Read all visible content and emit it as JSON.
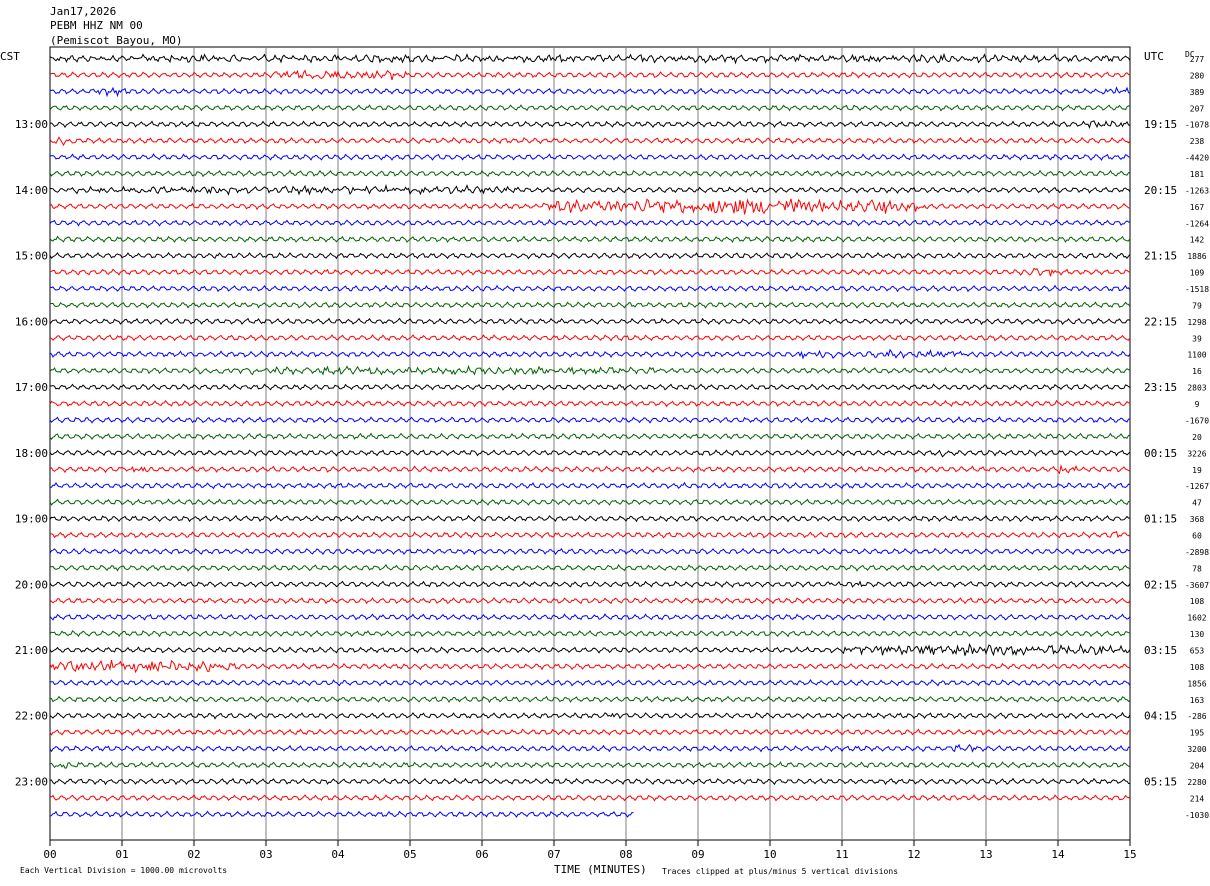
{
  "header": {
    "date": "Jan17,2026",
    "station": "PEBM HHZ NM 00",
    "location": "(Pemiscot Bayou, MO)"
  },
  "left_tz": "CST",
  "right_tz": "UTC",
  "dc_label": "DC",
  "footer": {
    "scale_note": "Each Vertical Division = 1000.00 microvolts",
    "xaxis_title": "TIME (MINUTES)",
    "clip_note": "Traces clipped at plus/minus 5 vertical divisions"
  },
  "colors": {
    "trace_cycle": [
      "#000000",
      "#ff0000",
      "#0000ff",
      "#006400"
    ],
    "grid": "#808080",
    "axes": "#000000"
  },
  "chart_data": {
    "type": "helicorder",
    "x": {
      "label": "TIME (MINUTES)",
      "range": [
        0,
        15
      ],
      "ticks": [
        "00",
        "01",
        "02",
        "03",
        "04",
        "05",
        "06",
        "07",
        "08",
        "09",
        "10",
        "11",
        "12",
        "13",
        "14",
        "15"
      ]
    },
    "rows_per_hour": 4,
    "row_minutes": 15,
    "left_hour_labels": [
      "13:00",
      "14:00",
      "15:00",
      "16:00",
      "17:00",
      "18:00",
      "19:00",
      "20:00",
      "21:00",
      "22:00",
      "23:00"
    ],
    "right_hour_labels": [
      "19:15",
      "20:15",
      "21:15",
      "22:15",
      "23:15",
      "00:15",
      "01:15",
      "02:15",
      "03:15",
      "04:15",
      "05:15"
    ],
    "dc_offsets": [
      "277",
      "280",
      "389",
      "207",
      "-1078",
      "238",
      "-4420",
      "181",
      "-1263",
      "167",
      "-1264",
      "142",
      "1886",
      "109",
      "-1518",
      "79",
      "1298",
      "39",
      "1100",
      "16",
      "2803",
      "9",
      "-1670",
      "20",
      "3226",
      "19",
      "-1267",
      "47",
      "368",
      "60",
      "-2898",
      "78",
      "-3607",
      "108",
      "1602",
      "130",
      "653",
      "108",
      "1856",
      "163",
      "-286",
      "195",
      "3200",
      "204",
      "2280",
      "214",
      "-1030"
    ],
    "last_trace_end_minute": 8.1,
    "events": [
      {
        "row": 0,
        "from": 0.0,
        "to": 15.0,
        "amp": 1.4
      },
      {
        "row": 1,
        "from": 3.1,
        "to": 5.0,
        "amp": 2.0
      },
      {
        "row": 2,
        "from": 0.6,
        "to": 1.1,
        "amp": 1.8
      },
      {
        "row": 2,
        "from": 14.6,
        "to": 15.0,
        "amp": 2.2
      },
      {
        "row": 4,
        "from": 14.4,
        "to": 15.0,
        "amp": 2.0
      },
      {
        "row": 5,
        "from": 0.0,
        "to": 0.35,
        "amp": 2.0
      },
      {
        "row": 8,
        "from": 0.0,
        "to": 6.5,
        "amp": 1.3
      },
      {
        "row": 9,
        "from": 6.8,
        "to": 12.2,
        "amp": 3.8
      },
      {
        "row": 9,
        "from": 9.0,
        "to": 10.6,
        "amp": 5.0
      },
      {
        "row": 13,
        "from": 13.5,
        "to": 14.0,
        "amp": 1.8
      },
      {
        "row": 18,
        "from": 10.4,
        "to": 10.9,
        "amp": 2.2
      },
      {
        "row": 18,
        "from": 11.3,
        "to": 12.9,
        "amp": 1.5
      },
      {
        "row": 19,
        "from": 2.0,
        "to": 8.5,
        "amp": 1.3
      },
      {
        "row": 21,
        "from": 0.0,
        "to": 0.1,
        "amp": 1.2
      },
      {
        "row": 24,
        "from": 12.3,
        "to": 12.5,
        "amp": 2.0
      },
      {
        "row": 25,
        "from": 1.0,
        "to": 1.4,
        "amp": 1.5
      },
      {
        "row": 25,
        "from": 14.0,
        "to": 14.3,
        "amp": 1.8
      },
      {
        "row": 29,
        "from": 14.7,
        "to": 15.0,
        "amp": 1.7
      },
      {
        "row": 32,
        "from": 10.8,
        "to": 11.3,
        "amp": 1.2
      },
      {
        "row": 36,
        "from": 11.0,
        "to": 15.0,
        "amp": 2.8
      },
      {
        "row": 37,
        "from": 0.0,
        "to": 2.6,
        "amp": 3.0
      },
      {
        "row": 40,
        "from": 7.7,
        "to": 8.1,
        "amp": 1.3
      },
      {
        "row": 42,
        "from": 12.5,
        "to": 12.9,
        "amp": 1.8
      },
      {
        "row": 43,
        "from": 0.1,
        "to": 0.4,
        "amp": 1.8
      }
    ]
  }
}
